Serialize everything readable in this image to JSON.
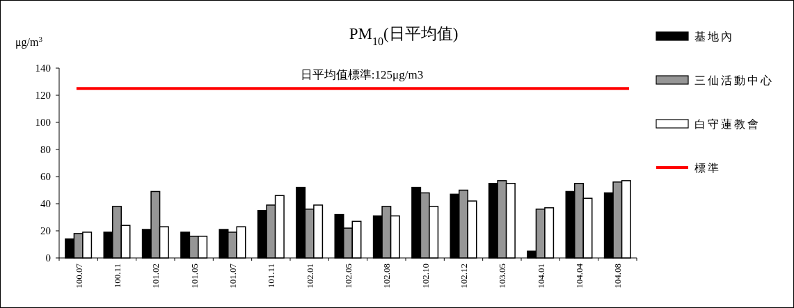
{
  "chart_data": {
    "type": "bar",
    "title": "PM$_{10}$(日平均值)",
    "ylabel": "μg/m$^{3}$",
    "categories": [
      "100.07",
      "100.11",
      "101.02",
      "101.05",
      "101.07",
      "101.11",
      "102.01",
      "102.05",
      "102.08",
      "102.10",
      "102.12",
      "103.05",
      "104.01",
      "104.04",
      "104.08"
    ],
    "series": [
      {
        "name": "基地內",
        "color": "#000000",
        "values": [
          14,
          19,
          21,
          19,
          21,
          35,
          52,
          32,
          31,
          52,
          47,
          55,
          5,
          49,
          48
        ]
      },
      {
        "name": "三仙活動中心",
        "color": "#969696",
        "values": [
          18,
          38,
          49,
          16,
          19,
          39,
          36,
          22,
          38,
          48,
          50,
          57,
          36,
          55,
          56
        ]
      },
      {
        "name": "白守蓮教會",
        "color": "#ffffff",
        "values": [
          19,
          24,
          23,
          16,
          23,
          46,
          39,
          27,
          31,
          38,
          42,
          55,
          37,
          44,
          57
        ]
      }
    ],
    "ylim": [
      0,
      140
    ],
    "yticks": [
      0,
      20,
      40,
      60,
      80,
      100,
      120,
      140
    ],
    "ref_lines": [
      {
        "axis": "y",
        "value": 125,
        "label": "標準",
        "color": "#ff0000"
      }
    ],
    "annotations": [
      "日平均值標準:125μg/m3"
    ],
    "legend": "right",
    "grid": false
  }
}
